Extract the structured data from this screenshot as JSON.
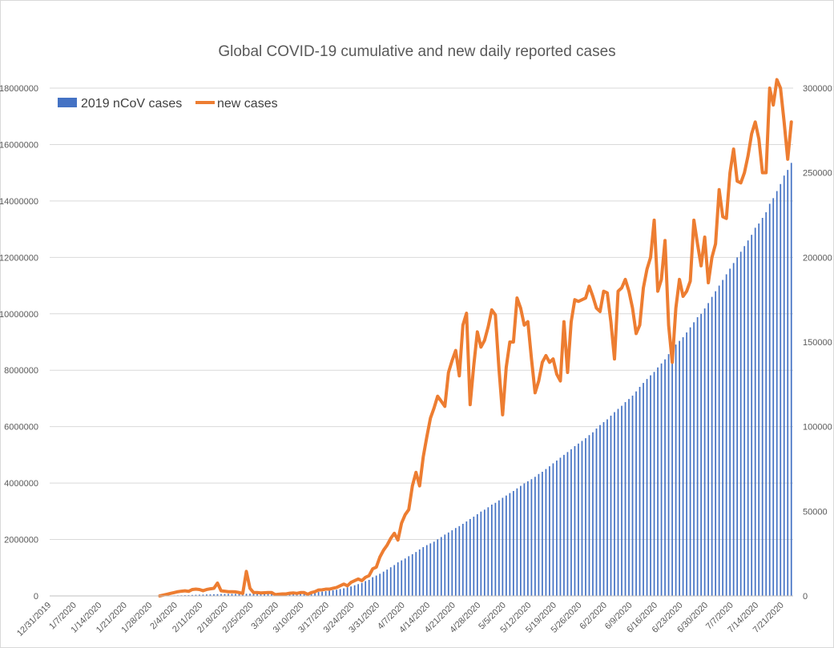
{
  "chart_data": {
    "type": "bar",
    "title": "Global COVID-19 cumulative and new daily reported cases",
    "xlabel": "",
    "ylabel": "",
    "y2label": "",
    "ylim": [
      0,
      18000000
    ],
    "y2lim": [
      0,
      300000
    ],
    "grid": true,
    "legend_position": "top-left",
    "y_ticks": [
      "0",
      "2000000",
      "4000000",
      "6000000",
      "8000000",
      "10000000",
      "12000000",
      "14000000",
      "16000000",
      "18000000"
    ],
    "y2_ticks": [
      "0",
      "50000",
      "100000",
      "150000",
      "200000",
      "250000",
      "300000"
    ],
    "x_ticks": [
      "12/31/2019",
      "1/7/2020",
      "1/14/2020",
      "1/21/2020",
      "1/28/2020",
      "2/4/2020",
      "2/11/2020",
      "2/18/2020",
      "2/25/2020",
      "3/3/2020",
      "3/10/2020",
      "3/17/2020",
      "3/24/2020",
      "3/31/2020",
      "4/7/2020",
      "4/14/2020",
      "4/21/2020",
      "4/28/2020",
      "5/5/2020",
      "5/12/2020",
      "5/19/2020",
      "5/26/2020",
      "6/2/2020",
      "6/9/2020",
      "6/16/2020",
      "6/23/2020",
      "6/30/2020",
      "7/7/2020",
      "7/14/2020",
      "7/21/2020"
    ],
    "series": [
      {
        "name": "2019 nCoV cases",
        "type": "bar",
        "axis": "left",
        "color": "#4472c4",
        "values": [
          0,
          0,
          0,
          0,
          0,
          0,
          0,
          0,
          0,
          0,
          0,
          0,
          0,
          0,
          0,
          0,
          0,
          0,
          0,
          0,
          0,
          0,
          0,
          0,
          0,
          0,
          0,
          0,
          0,
          0,
          6000,
          8000,
          11000,
          14000,
          18000,
          21000,
          24000,
          28000,
          30000,
          35000,
          40000,
          44000,
          46000,
          53000,
          55000,
          60000,
          64000,
          67000,
          69000,
          71000,
          72000,
          73000,
          74000,
          75000,
          76000,
          77000,
          78000,
          78500,
          79000,
          80000,
          81000,
          82000,
          84000,
          86000,
          88000,
          91000,
          93000,
          96000,
          99000,
          102000,
          106000,
          110000,
          118000,
          126000,
          140000,
          152000,
          168000,
          183000,
          201000,
          220000,
          244000,
          270000,
          306000,
          336000,
          378000,
          419000,
          462000,
          526000,
          569000,
          664000,
          722000,
          786000,
          861000,
          935000,
          1016000,
          1095000,
          1191000,
          1260000,
          1327000,
          1409000,
          1480000,
          1557000,
          1648000,
          1731000,
          1801000,
          1862000,
          1923000,
          2008000,
          2088000,
          2175000,
          2249000,
          2327000,
          2407000,
          2475000,
          2556000,
          2640000,
          2727000,
          2809000,
          2897000,
          2990000,
          3058000,
          3143000,
          3237000,
          3300000,
          3387000,
          3478000,
          3559000,
          3645000,
          3720000,
          3812000,
          3901000,
          3989000,
          4065000,
          4138000,
          4222000,
          4322000,
          4401000,
          4498000,
          4596000,
          4700000,
          4800000,
          4900000,
          5000000,
          5100000,
          5200000,
          5310000,
          5400000,
          5495000,
          5590000,
          5700000,
          5800000,
          5935000,
          6057000,
          6160000,
          6260000,
          6390000,
          6515000,
          6630000,
          6740000,
          6870000,
          6980000,
          7100000,
          7250000,
          7410000,
          7550000,
          7690000,
          7820000,
          7940000,
          8100000,
          8240000,
          8385000,
          8570000,
          8750000,
          8910000,
          9040000,
          9170000,
          9340000,
          9520000,
          9700000,
          9880000,
          10000000,
          10190000,
          10380000,
          10600000,
          10800000,
          11000000,
          11200000,
          11400000,
          11600000,
          11800000,
          12000000,
          12200000,
          12400000,
          12600000,
          12800000,
          13050000,
          13200000,
          13400000,
          13600000,
          13900000,
          14100000,
          14350000,
          14600000,
          14900000,
          15100000,
          15350000
        ]
      },
      {
        "name": "new cases",
        "type": "line",
        "axis": "right",
        "color": "#ed7d31",
        "values": [
          0,
          0,
          0,
          0,
          0,
          0,
          0,
          0,
          0,
          0,
          0,
          0,
          0,
          0,
          0,
          0,
          0,
          0,
          0,
          0,
          0,
          0,
          0,
          0,
          0,
          0,
          0,
          0,
          0,
          0,
          0,
          500,
          1000,
          1500,
          2000,
          2500,
          2800,
          3000,
          2700,
          3800,
          4000,
          3800,
          3100,
          3800,
          4200,
          4500,
          7600,
          3000,
          2800,
          2500,
          2500,
          2400,
          2000,
          1500,
          14500,
          4500,
          2000,
          2000,
          1800,
          1900,
          2000,
          2000,
          800,
          1000,
          1200,
          1200,
          1600,
          1800,
          1500,
          2000,
          2000,
          1000,
          2000,
          2500,
          3500,
          3600,
          4000,
          4000,
          4500,
          5000,
          6000,
          7000,
          6000,
          8000,
          9000,
          10000,
          9000,
          11000,
          12000,
          16000,
          17000,
          23000,
          27000,
          30000,
          34000,
          37000,
          33000,
          43000,
          48000,
          51000,
          65000,
          73000,
          65000,
          82000,
          94000,
          105000,
          111000,
          118000,
          115000,
          112000,
          132000,
          139000,
          145000,
          130000,
          160000,
          167000,
          113000,
          136000,
          156000,
          147000,
          151000,
          159000,
          169000,
          166000,
          134000,
          107000,
          135000,
          150000,
          150000,
          176000,
          170000,
          160000,
          162000,
          140000,
          120000,
          127000,
          138000,
          142000,
          138000,
          140000,
          131000,
          127000,
          162000,
          132000,
          162000,
          175000,
          174000,
          175000,
          176000,
          183000,
          177000,
          170000,
          168000,
          180000,
          179000,
          162000,
          140000,
          180000,
          182000,
          187000,
          180000,
          170000,
          155000,
          160000,
          182000,
          193000,
          200000,
          222000,
          180000,
          187000,
          210000,
          160000,
          138000,
          170000,
          187000,
          177000,
          180000,
          186000,
          222000,
          208000,
          195000,
          212000,
          185000,
          200000,
          208000,
          240000,
          224000,
          223000,
          250000,
          264000,
          245000,
          244000,
          250000,
          260000,
          273000,
          280000,
          270000,
          250000,
          250000,
          300000,
          290000,
          305000,
          300000,
          280000,
          258000,
          280000
        ]
      }
    ]
  }
}
